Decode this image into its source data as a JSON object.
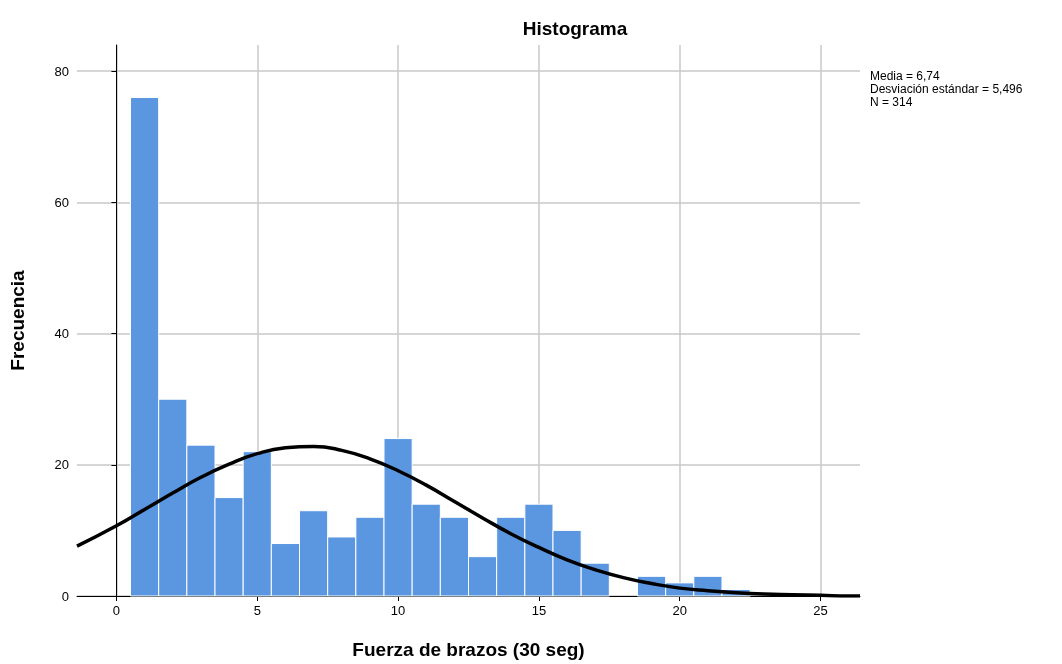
{
  "chart_data": {
    "type": "histogram",
    "title": "Histograma",
    "xlabel": "Fuerza de brazos (30 seg)",
    "ylabel": "Frecuencia",
    "bins": [
      0.5,
      1.5,
      2.5,
      3.5,
      4.5,
      5.5,
      6.5,
      7.5,
      8.5,
      9.5,
      10.5,
      11.5,
      12.5,
      13.5,
      14.5,
      15.5,
      16.5,
      17.5,
      18.5,
      19.5,
      20.5,
      21.5,
      22.5
    ],
    "values": [
      76,
      30,
      23,
      15,
      22,
      8,
      13,
      9,
      12,
      24,
      14,
      12,
      6,
      12,
      14,
      10,
      5,
      0,
      3,
      2,
      3,
      1
    ],
    "color": "#5b97e1",
    "series": [
      {
        "type": "line",
        "color": "#000000",
        "x": [
          -1.4,
          0,
          1,
          2,
          3,
          4,
          5,
          6,
          7,
          8,
          9,
          10,
          11,
          12,
          13,
          14,
          15,
          16,
          17,
          18,
          19,
          20,
          21,
          22,
          23,
          24,
          25,
          26,
          26.4
        ],
        "values": [
          7.6,
          10.7,
          13.2,
          15.7,
          18.1,
          20.1,
          21.7,
          22.6,
          22.8,
          22.2,
          20.9,
          19.1,
          16.9,
          14.4,
          11.9,
          9.5,
          7.4,
          5.5,
          4.0,
          2.8,
          1.9,
          1.2,
          0.8,
          0.5,
          0.3,
          0.2,
          0.1,
          0.0,
          0.0
        ]
      }
    ],
    "xlim": [
      -1.4,
      26.4
    ],
    "ylim": [
      0,
      84
    ],
    "xticks": [
      0,
      5,
      10,
      15,
      20,
      25
    ],
    "yticks": [
      0,
      20,
      40,
      60,
      80
    ],
    "grid": true,
    "annotations": [
      "Media = 6,74",
      "Desviación estándar = 5,496",
      "N = 314"
    ]
  }
}
